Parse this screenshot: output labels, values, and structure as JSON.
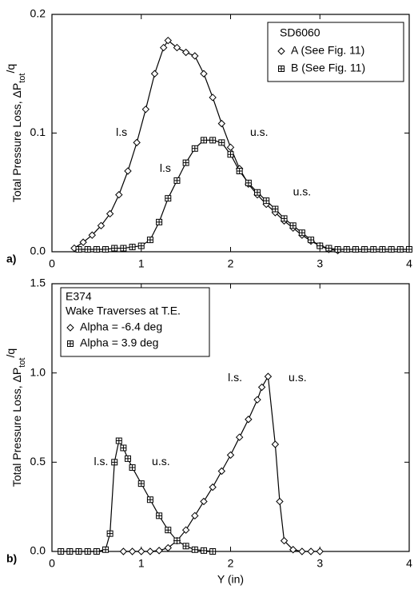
{
  "chart_data": [
    {
      "type": "line",
      "panel": "a)",
      "ylabel": [
        "Total Pressure Loss, ",
        "ΔP",
        "tot",
        "/q"
      ],
      "legend_title": [
        "SD6060"
      ],
      "series": [
        {
          "name": "A (See Fig. 11)",
          "color": "#000000",
          "marker": "diamond",
          "x": [
            0.25,
            0.35,
            0.45,
            0.55,
            0.65,
            0.75,
            0.85,
            0.95,
            1.05,
            1.15,
            1.25,
            1.3,
            1.4,
            1.5,
            1.6,
            1.7,
            1.8,
            1.9,
            2.0,
            2.1,
            2.2,
            2.3,
            2.4,
            2.5,
            2.6,
            2.7,
            2.8,
            2.9,
            3.0,
            3.1,
            3.2
          ],
          "values": [
            0.003,
            0.008,
            0.014,
            0.022,
            0.032,
            0.048,
            0.068,
            0.092,
            0.12,
            0.15,
            0.172,
            0.178,
            0.172,
            0.168,
            0.165,
            0.15,
            0.13,
            0.108,
            0.088,
            0.07,
            0.057,
            0.048,
            0.04,
            0.033,
            0.026,
            0.02,
            0.014,
            0.009,
            0.005,
            0.002,
            0.001
          ]
        },
        {
          "name": "B (See Fig. 11)",
          "color": "#000000",
          "marker": "square-cross",
          "x": [
            0.3,
            0.4,
            0.5,
            0.6,
            0.7,
            0.8,
            0.9,
            1.0,
            1.1,
            1.2,
            1.3,
            1.4,
            1.5,
            1.6,
            1.7,
            1.8,
            1.9,
            2.0,
            2.1,
            2.2,
            2.3,
            2.4,
            2.5,
            2.6,
            2.7,
            2.8,
            2.9,
            3.0,
            3.1,
            3.2,
            3.3,
            3.4,
            3.5,
            3.6,
            3.7,
            3.8,
            3.9,
            4.0
          ],
          "values": [
            0.002,
            0.002,
            0.002,
            0.002,
            0.003,
            0.003,
            0.004,
            0.005,
            0.01,
            0.025,
            0.045,
            0.06,
            0.075,
            0.087,
            0.094,
            0.094,
            0.092,
            0.082,
            0.068,
            0.058,
            0.05,
            0.043,
            0.036,
            0.028,
            0.022,
            0.016,
            0.01,
            0.005,
            0.003,
            0.002,
            0.002,
            0.002,
            0.002,
            0.002,
            0.002,
            0.002,
            0.002,
            0.002
          ]
        }
      ],
      "annotations": [
        "l.s",
        "u.s.",
        "l.s",
        "u.s."
      ],
      "xlim": [
        0,
        4
      ],
      "xticks": [
        0,
        1,
        2,
        3,
        4
      ],
      "ylim": [
        0,
        0.2
      ],
      "yticks": [
        {
          "value": 0,
          "label": "0.0"
        },
        0.1,
        0.2
      ]
    },
    {
      "type": "line",
      "panel": "b)",
      "ylabel": [
        "Total Pressure Loss, ",
        "ΔP",
        "tot",
        "/q"
      ],
      "xlabel": "Y (in)",
      "legend_title": [
        "E374",
        "Wake Traverses at T.E."
      ],
      "series": [
        {
          "name": "Alpha = -6.4 deg",
          "color": "#000000",
          "marker": "diamond",
          "x": [
            0.8,
            0.9,
            1.0,
            1.1,
            1.2,
            1.3,
            1.4,
            1.5,
            1.6,
            1.7,
            1.8,
            1.9,
            2.0,
            2.1,
            2.2,
            2.3,
            2.35,
            2.42,
            2.5,
            2.55,
            2.6,
            2.7,
            2.8,
            2.9,
            3.0
          ],
          "values": [
            0,
            0,
            0,
            0,
            0.005,
            0.02,
            0.06,
            0.12,
            0.2,
            0.28,
            0.36,
            0.45,
            0.54,
            0.64,
            0.74,
            0.85,
            0.92,
            0.98,
            0.6,
            0.28,
            0.06,
            0.01,
            0,
            0,
            0
          ]
        },
        {
          "name": "Alpha = 3.9 deg",
          "color": "#000000",
          "marker": "square-cross",
          "x": [
            0.1,
            0.2,
            0.3,
            0.4,
            0.5,
            0.6,
            0.65,
            0.7,
            0.75,
            0.8,
            0.85,
            0.9,
            1.0,
            1.1,
            1.2,
            1.3,
            1.4,
            1.5,
            1.6,
            1.7,
            1.8
          ],
          "values": [
            0,
            0,
            0,
            0,
            0,
            0.01,
            0.1,
            0.5,
            0.62,
            0.58,
            0.52,
            0.47,
            0.38,
            0.29,
            0.2,
            0.12,
            0.06,
            0.03,
            0.01,
            0.005,
            0
          ]
        }
      ],
      "annotations": [
        "l.s.",
        "u.s.",
        "l.s.",
        "u.s."
      ],
      "xlim": [
        0,
        4
      ],
      "xticks": [
        0,
        1,
        2,
        3,
        4
      ],
      "ylim": [
        0,
        1.5
      ],
      "yticks": [
        {
          "value": 0,
          "label": "0.0"
        },
        0.5,
        {
          "value": 1,
          "label": "1.0"
        },
        1.5
      ]
    }
  ]
}
